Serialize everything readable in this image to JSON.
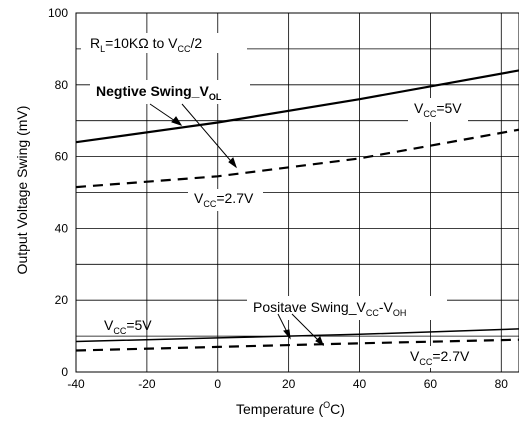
{
  "chart_data": {
    "type": "line",
    "xlabel_main": "Temperature (",
    "xlabel_sup": "O",
    "xlabel_end": "C)",
    "ylabel": "Output Voltage Swing (mV)",
    "xlim": [
      -40,
      85
    ],
    "ylim": [
      0,
      100
    ],
    "x_ticks": [
      -40,
      -20,
      0,
      20,
      40,
      60,
      80
    ],
    "y_ticks": [
      0,
      20,
      40,
      60,
      80,
      100
    ],
    "grid": true,
    "series": [
      {
        "name": "VCC=5V",
        "group": "Negtive Swing_VOL",
        "style": "solid",
        "width": 2.2,
        "x": [
          -40,
          0,
          40,
          85
        ],
        "y": [
          64,
          69.5,
          76,
          84
        ]
      },
      {
        "name": "VCC=2.7V",
        "group": "Negtive Swing_VOL",
        "style": "dashed",
        "width": 2.2,
        "x": [
          -40,
          0,
          40,
          85
        ],
        "y": [
          51.5,
          54.5,
          59.5,
          67.5
        ]
      },
      {
        "name": "VCC=5V",
        "group": "Positave Swing_VCC-VOH",
        "style": "solid",
        "width": 1.5,
        "x": [
          -40,
          0,
          40,
          85
        ],
        "y": [
          8.5,
          9.5,
          10.5,
          12
        ]
      },
      {
        "name": "VCC=2.7V",
        "group": "Positave Swing_VCC-VOH",
        "style": "dashed",
        "width": 2.2,
        "x": [
          -40,
          0,
          40,
          85
        ],
        "y": [
          6,
          7,
          8,
          9
        ]
      }
    ],
    "annotations": {
      "condition": {
        "main": "R",
        "sub1": "L",
        "mid": "=10KΩ to V",
        "sub2": "CC",
        "end": "/2"
      },
      "neg_title": {
        "main": "Negtive Swing_V",
        "sub": "OL"
      },
      "neg_5v": {
        "main": "V",
        "sub": "CC",
        "end": "=5V"
      },
      "neg_27v": {
        "main": "V",
        "sub": "CC",
        "end": "=2.7V"
      },
      "pos_title": {
        "main": "Positave Swing_V",
        "sub1": "CC",
        "mid": "-V",
        "sub2": "OH"
      },
      "pos_5v": {
        "main": "V",
        "sub": "CC",
        "end": "=5V"
      },
      "pos_27v": {
        "main": "V",
        "sub": "CC",
        "end": "=2.7V"
      }
    }
  }
}
